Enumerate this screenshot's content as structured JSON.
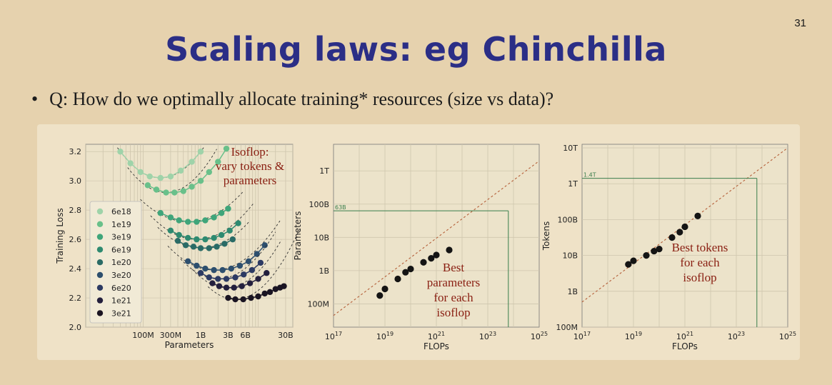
{
  "slide_number": "31",
  "title": "Scaling laws: eg Chinchilla",
  "bullet": "Q: How do we optimally allocate training* resources (size vs data)?",
  "colors": {
    "title": "#2b2e86",
    "annotation": "#8a1f12",
    "fit_line": "#b5603a",
    "marker_line": "#3a7e4c",
    "point": "#141414"
  },
  "chart_data": [
    {
      "type": "line",
      "xlabel": "Parameters",
      "ylabel": "Training Loss",
      "x_scale": "log",
      "xlim": [
        10000000,
        40000000000
      ],
      "ylim": [
        2.0,
        3.25
      ],
      "xticks": [
        {
          "value": 100000000,
          "label": "100M"
        },
        {
          "value": 300000000,
          "label": "300M"
        },
        {
          "value": 1000000000,
          "label": "1B"
        },
        {
          "value": 3000000000,
          "label": "3B"
        },
        {
          "value": 6000000000,
          "label": "6B"
        },
        {
          "value": 30000000000,
          "label": "30B"
        }
      ],
      "yticks": [
        {
          "value": 2.0,
          "label": "2.0"
        },
        {
          "value": 2.2,
          "label": "2.2"
        },
        {
          "value": 2.4,
          "label": "2.4"
        },
        {
          "value": 2.6,
          "label": "2.6"
        },
        {
          "value": 2.8,
          "label": "2.8"
        },
        {
          "value": 3.0,
          "label": "3.0"
        },
        {
          "value": 3.2,
          "label": "3.2"
        }
      ],
      "grid": true,
      "legend": "left",
      "annotation": [
        "Isoflop:",
        "vary tokens &",
        "parameters"
      ],
      "series": [
        {
          "name": "6e18",
          "color": "#9fd3a9",
          "points": [
            [
              40000000,
              3.2
            ],
            [
              60000000,
              3.12
            ],
            [
              90000000,
              3.06
            ],
            [
              130000000,
              3.03
            ],
            [
              200000000,
              3.02
            ],
            [
              300000000,
              3.03
            ],
            [
              450000000,
              3.07
            ],
            [
              700000000,
              3.13
            ],
            [
              1000000000,
              3.2
            ]
          ]
        },
        {
          "name": "1e19",
          "color": "#69c08a",
          "points": [
            [
              120000000,
              2.97
            ],
            [
              170000000,
              2.94
            ],
            [
              250000000,
              2.92
            ],
            [
              350000000,
              2.92
            ],
            [
              500000000,
              2.93
            ],
            [
              700000000,
              2.96
            ],
            [
              1000000000,
              3.0
            ],
            [
              1400000000,
              3.06
            ],
            [
              2000000000,
              3.13
            ],
            [
              2800000000,
              3.22
            ]
          ]
        },
        {
          "name": "3e19",
          "color": "#3fa57a",
          "points": [
            [
              200000000,
              2.78
            ],
            [
              300000000,
              2.75
            ],
            [
              420000000,
              2.73
            ],
            [
              600000000,
              2.72
            ],
            [
              850000000,
              2.72
            ],
            [
              1200000000,
              2.73
            ],
            [
              1700000000,
              2.75
            ],
            [
              2300000000,
              2.78
            ],
            [
              3000000000,
              2.81
            ]
          ]
        },
        {
          "name": "6e19",
          "color": "#2e8a70",
          "points": [
            [
              300000000,
              2.66
            ],
            [
              420000000,
              2.63
            ],
            [
              600000000,
              2.61
            ],
            [
              850000000,
              2.6
            ],
            [
              1200000000,
              2.6
            ],
            [
              1700000000,
              2.61
            ],
            [
              2300000000,
              2.63
            ],
            [
              3200000000,
              2.66
            ],
            [
              4500000000,
              2.71
            ]
          ]
        },
        {
          "name": "1e20",
          "color": "#2a6b66",
          "points": [
            [
              400000000,
              2.59
            ],
            [
              550000000,
              2.56
            ],
            [
              750000000,
              2.55
            ],
            [
              1000000000,
              2.54
            ],
            [
              1400000000,
              2.54
            ],
            [
              1900000000,
              2.55
            ],
            [
              2600000000,
              2.57
            ],
            [
              3600000000,
              2.6
            ]
          ]
        },
        {
          "name": "3e20",
          "color": "#2d4f6e",
          "points": [
            [
              600000000,
              2.45
            ],
            [
              850000000,
              2.42
            ],
            [
              1200000000,
              2.4
            ],
            [
              1700000000,
              2.39
            ],
            [
              2400000000,
              2.39
            ],
            [
              3400000000,
              2.4
            ],
            [
              4800000000,
              2.42
            ],
            [
              6800000000,
              2.45
            ],
            [
              9500000000,
              2.5
            ],
            [
              13000000000,
              2.56
            ]
          ]
        },
        {
          "name": "6e20",
          "color": "#2c3a63",
          "points": [
            [
              1000000000,
              2.37
            ],
            [
              1400000000,
              2.34
            ],
            [
              2000000000,
              2.33
            ],
            [
              2800000000,
              2.33
            ],
            [
              4000000000,
              2.34
            ],
            [
              5600000000,
              2.36
            ],
            [
              7800000000,
              2.39
            ],
            [
              11000000000,
              2.44
            ]
          ]
        },
        {
          "name": "1e21",
          "color": "#231f3d",
          "points": [
            [
              1600000000,
              2.3
            ],
            [
              2100000000,
              2.28
            ],
            [
              2800000000,
              2.27
            ],
            [
              3800000000,
              2.27
            ],
            [
              5200000000,
              2.28
            ],
            [
              7200000000,
              2.3
            ],
            [
              10000000000,
              2.33
            ],
            [
              14000000000,
              2.37
            ]
          ]
        },
        {
          "name": "3e21",
          "color": "#1a1422",
          "points": [
            [
              3000000000,
              2.2
            ],
            [
              4000000000,
              2.19
            ],
            [
              5500000000,
              2.19
            ],
            [
              7500000000,
              2.2
            ],
            [
              10000000000,
              2.21
            ],
            [
              13000000000,
              2.23
            ],
            [
              16000000000,
              2.24
            ],
            [
              20000000000,
              2.26
            ],
            [
              24000000000,
              2.27
            ],
            [
              28000000000,
              2.28
            ]
          ]
        }
      ]
    },
    {
      "type": "scatter",
      "xlabel": "FLOPs",
      "ylabel": "Parameters",
      "x_scale": "log",
      "y_scale": "log",
      "xlim_exp": [
        17,
        25
      ],
      "ylim_exp": [
        7.3,
        12.8
      ],
      "xticks": [
        {
          "exp": 17,
          "base": "10",
          "sup": "17"
        },
        {
          "exp": 19,
          "base": "10",
          "sup": "19"
        },
        {
          "exp": 21,
          "base": "10",
          "sup": "21"
        },
        {
          "exp": 23,
          "base": "10",
          "sup": "23"
        },
        {
          "exp": 25,
          "base": "10",
          "sup": "25"
        }
      ],
      "yticks": [
        {
          "exp": 8,
          "label": "100M"
        },
        {
          "exp": 9,
          "label": "1B"
        },
        {
          "exp": 10,
          "label": "10B"
        },
        {
          "exp": 11,
          "label": "100B"
        },
        {
          "exp": 12,
          "label": "1T"
        }
      ],
      "grid": true,
      "points": [
        [
          18.8,
          8.25
        ],
        [
          19.0,
          8.45
        ],
        [
          19.5,
          8.75
        ],
        [
          19.8,
          8.95
        ],
        [
          20.0,
          9.05
        ],
        [
          20.5,
          9.25
        ],
        [
          20.8,
          9.37
        ],
        [
          21.0,
          9.47
        ],
        [
          21.5,
          9.62
        ]
      ],
      "fit_line": [
        [
          17,
          7.65
        ],
        [
          25,
          12.3
        ]
      ],
      "marker": {
        "x_exp": 23.8,
        "y_exp": 10.8,
        "label": "63B"
      },
      "annotation": [
        "Best",
        "parameters",
        "for each",
        "isoflop"
      ]
    },
    {
      "type": "scatter",
      "xlabel": "FLOPs",
      "ylabel": "Tokens",
      "x_scale": "log",
      "y_scale": "log",
      "xlim_exp": [
        17,
        25
      ],
      "ylim_exp": [
        8,
        13.1
      ],
      "xticks": [
        {
          "exp": 17,
          "base": "10",
          "sup": "17"
        },
        {
          "exp": 19,
          "base": "10",
          "sup": "19"
        },
        {
          "exp": 21,
          "base": "10",
          "sup": "21"
        },
        {
          "exp": 23,
          "base": "10",
          "sup": "23"
        },
        {
          "exp": 25,
          "base": "10",
          "sup": "25"
        }
      ],
      "yticks": [
        {
          "exp": 8,
          "label": "100M"
        },
        {
          "exp": 9,
          "label": "1B"
        },
        {
          "exp": 10,
          "label": "10B"
        },
        {
          "exp": 11,
          "label": "100B"
        },
        {
          "exp": 12,
          "label": "1T"
        },
        {
          "exp": 13,
          "label": "10T"
        }
      ],
      "grid": true,
      "points": [
        [
          18.8,
          9.75
        ],
        [
          19.0,
          9.85
        ],
        [
          19.5,
          10.0
        ],
        [
          19.8,
          10.12
        ],
        [
          20.0,
          10.18
        ],
        [
          20.5,
          10.5
        ],
        [
          20.8,
          10.65
        ],
        [
          21.0,
          10.8
        ],
        [
          21.5,
          11.1
        ]
      ],
      "fit_line": [
        [
          17,
          8.7
        ],
        [
          25,
          13.0
        ]
      ],
      "marker": {
        "x_exp": 23.8,
        "y_exp": 12.15,
        "label": "1.4T"
      },
      "annotation": [
        "Best tokens",
        "for each",
        "isoflop"
      ]
    }
  ]
}
